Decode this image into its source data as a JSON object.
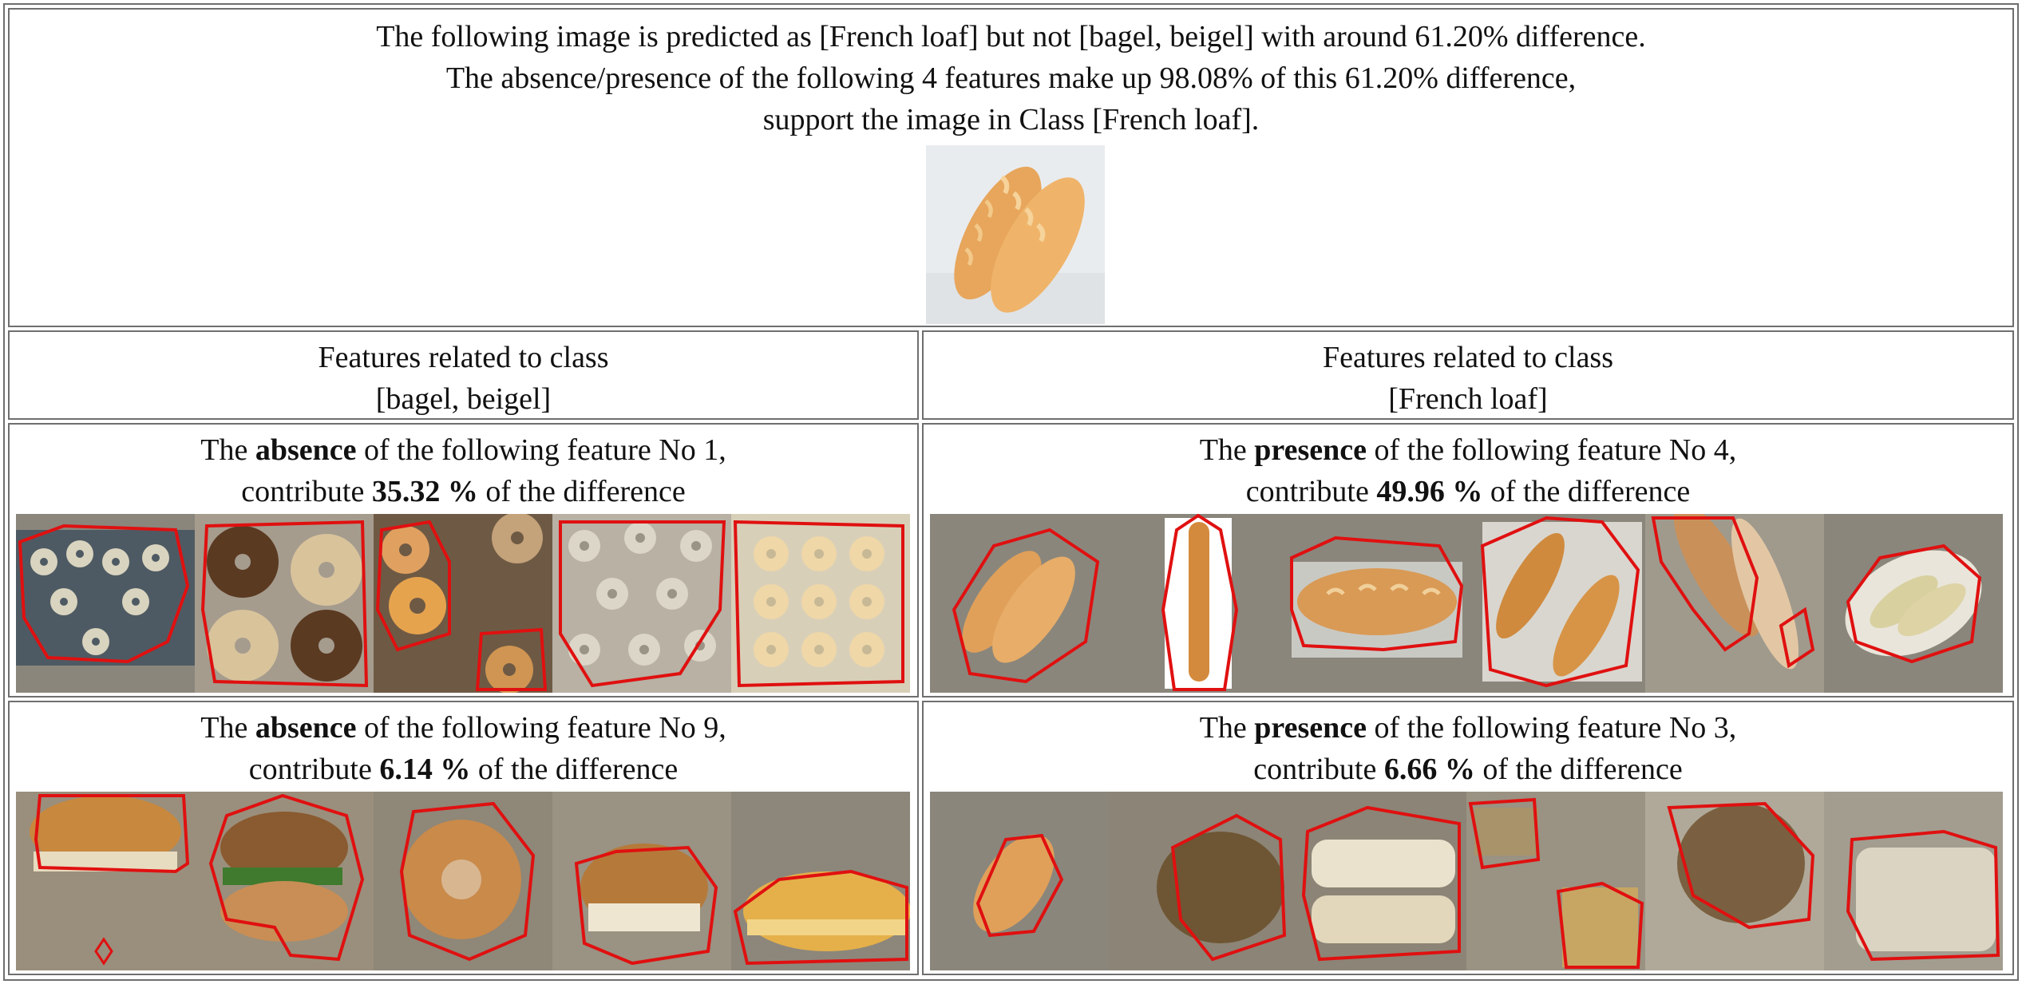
{
  "header": {
    "line1": "The following image is predicted as [French loaf] but not [bagel, beigel] with around 61.20% difference.",
    "line2": "The absence/presence of the following 4 features make up 98.08% of this 61.20% difference,",
    "line3": "support the image in Class [French loaf]."
  },
  "columns": {
    "left": {
      "line1": "Features related to class",
      "line2": "[bagel, beigel]"
    },
    "right": {
      "line1": "Features related to class",
      "line2": "[French loaf]"
    }
  },
  "features": [
    {
      "pre": "The ",
      "kind": "absence",
      "mid": " of the following feature No 1,",
      "lead": "contribute ",
      "pct": "35.32 %",
      "tail": " of the difference"
    },
    {
      "pre": "The ",
      "kind": "presence",
      "mid": " of the following feature No 4,",
      "lead": "contribute ",
      "pct": "49.96 %",
      "tail": " of the difference"
    },
    {
      "pre": "The ",
      "kind": "absence",
      "mid": " of the following feature No 9,",
      "lead": "contribute ",
      "pct": "6.14 %",
      "tail": " of the difference"
    },
    {
      "pre": "The ",
      "kind": "presence",
      "mid": " of the following feature No 3,",
      "lead": "contribute ",
      "pct": "6.66 %",
      "tail": " of the difference"
    }
  ],
  "colors": {
    "border": "#6f6f6f",
    "outline": "#e01010",
    "bread": "#e8a860",
    "bagel_plain": "#d9c9a8",
    "bagel_seeded": "#5b3a22",
    "dough": "#efd7a8",
    "mask": "#8a867c"
  }
}
